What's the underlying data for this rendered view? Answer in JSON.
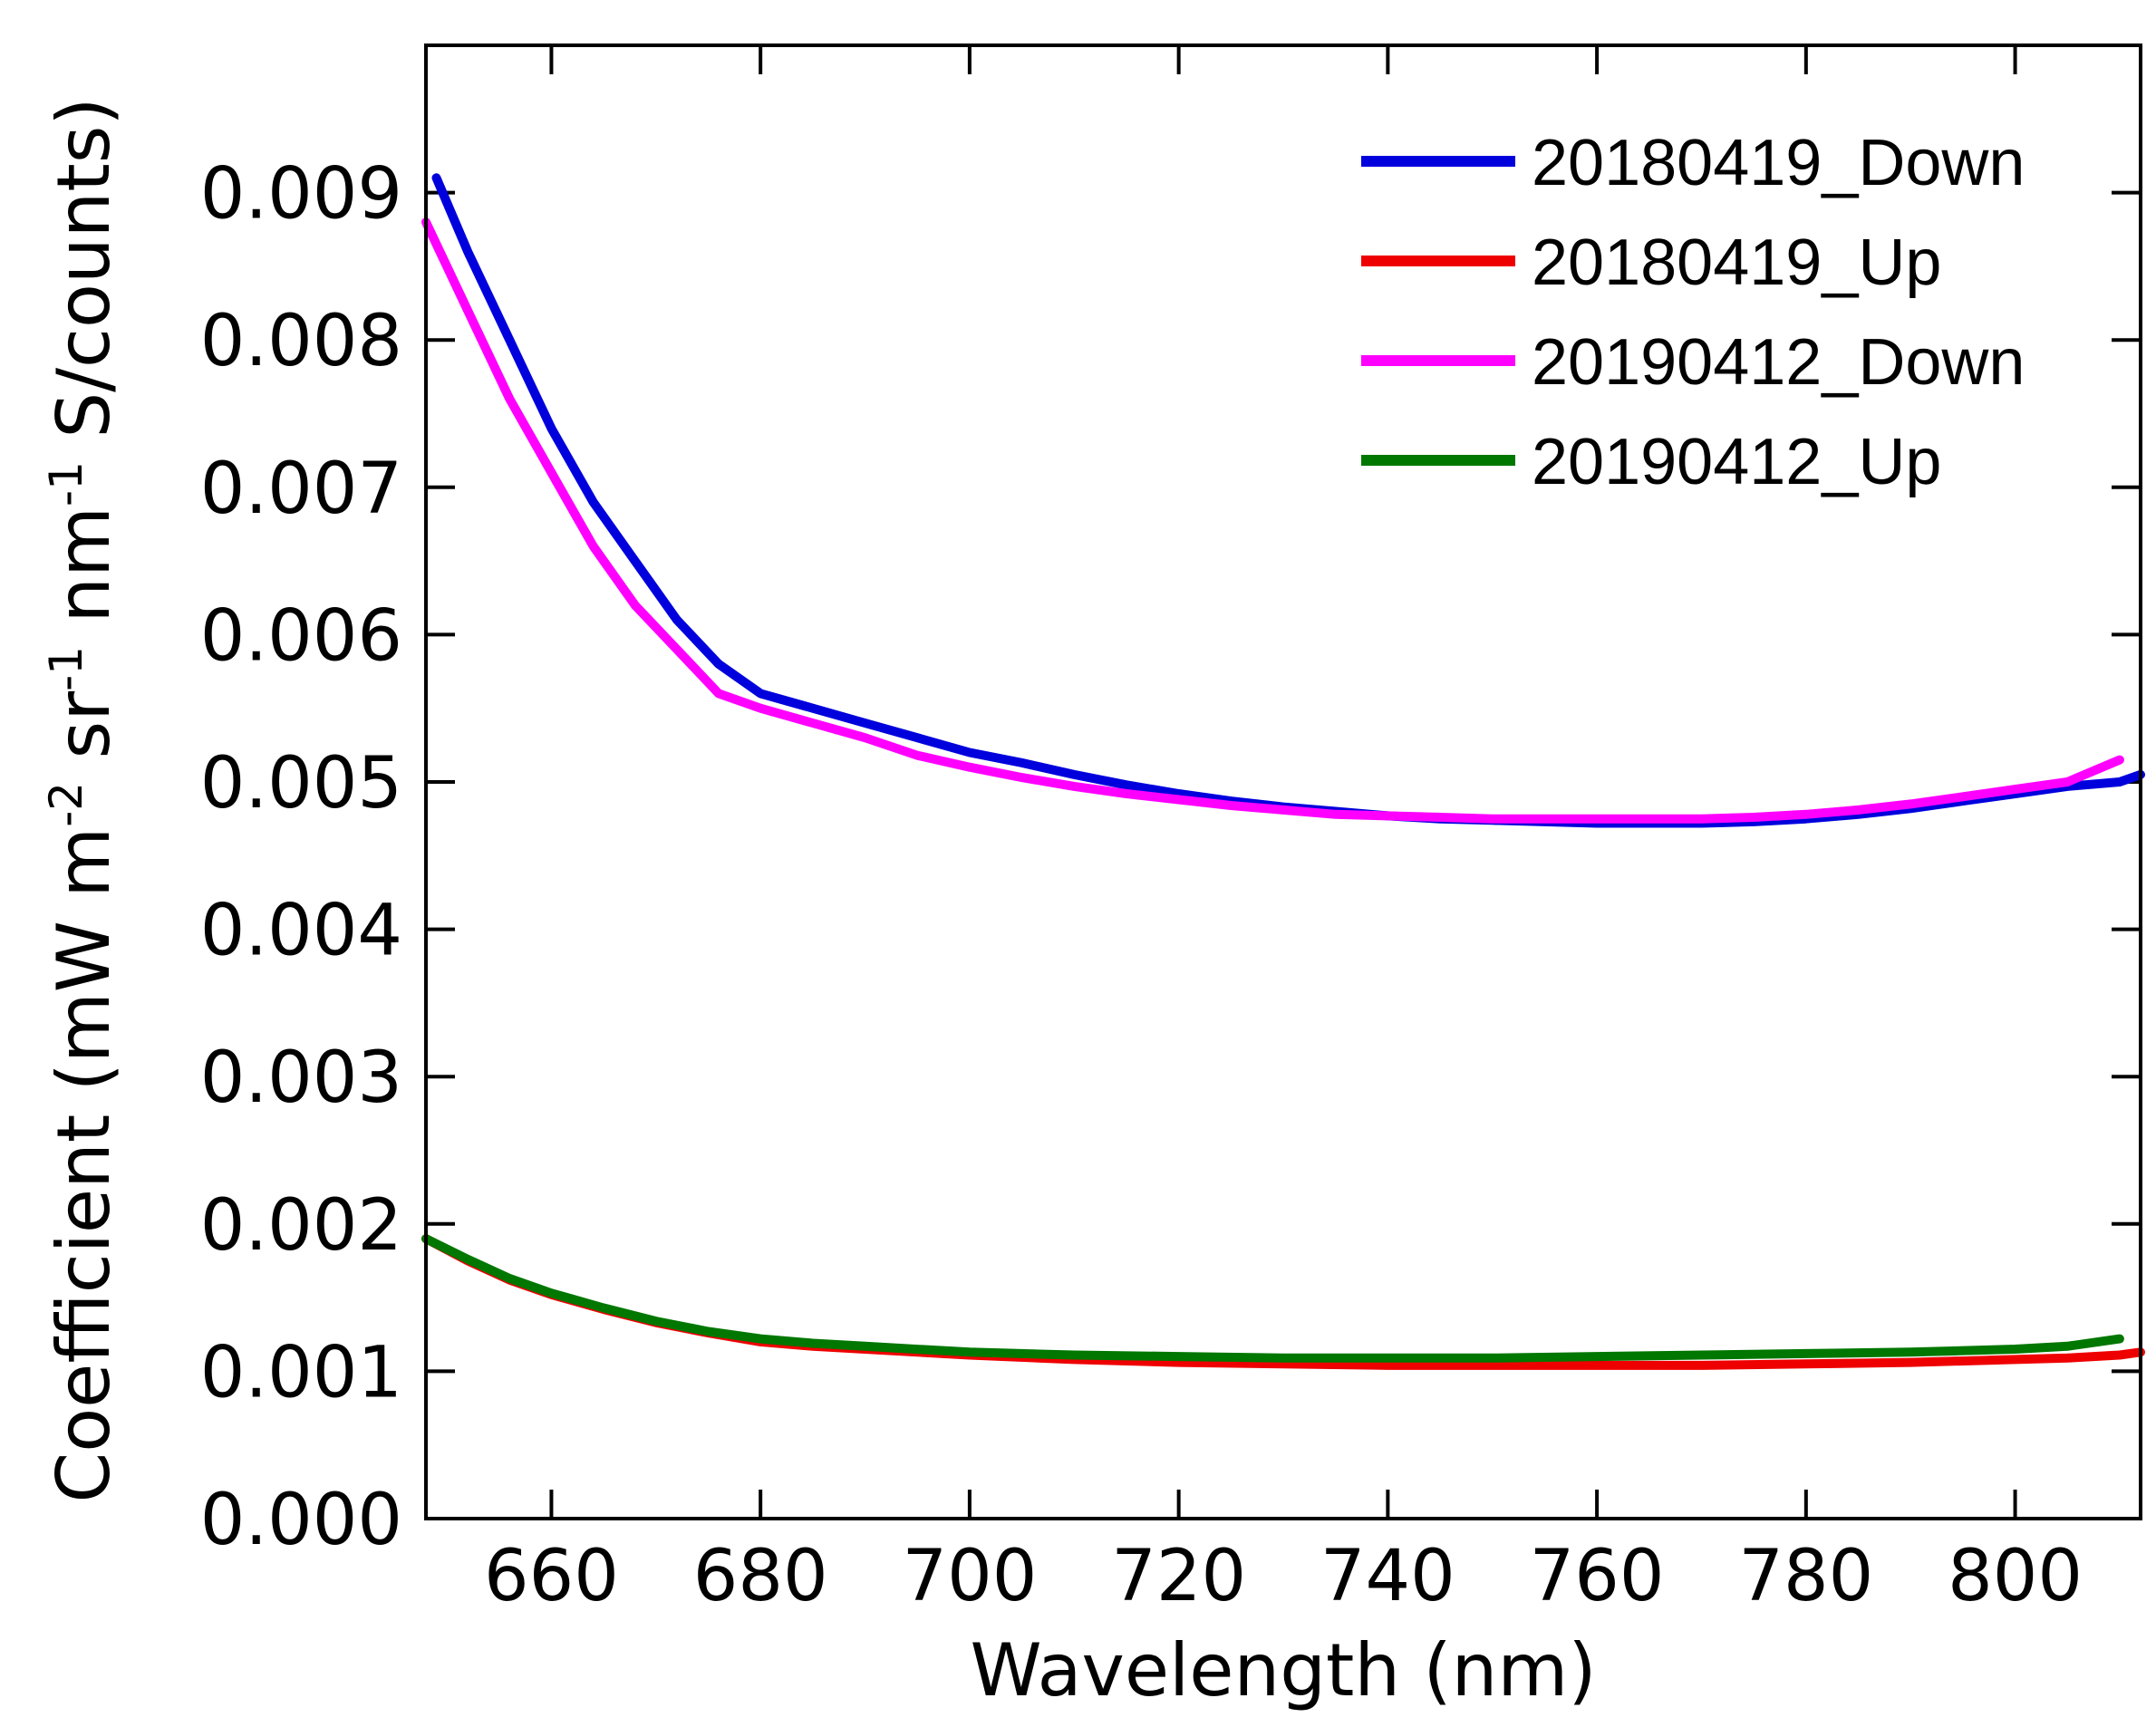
{
  "chart_data": {
    "type": "line",
    "title": "",
    "xlabel": "Wavelength (nm)",
    "ylabel": "Coefficient (mW m-2 sr-1 nm-1 S/counts)",
    "ylabel_parts": {
      "pre": "Coefficient (mW m",
      "sup1": "-2",
      "mid1": " sr",
      "sup2": "-1",
      "mid2": " nm",
      "sup3": "-1",
      "post": " S/counts)"
    },
    "xlim": [
      648,
      812
    ],
    "ylim": [
      0,
      0.01
    ],
    "x_ticks": [
      "660",
      "680",
      "700",
      "720",
      "740",
      "760",
      "780",
      "800"
    ],
    "y_ticks": [
      "0.000",
      "0.001",
      "0.002",
      "0.003",
      "0.004",
      "0.005",
      "0.006",
      "0.007",
      "0.008",
      "0.009"
    ],
    "grid": false,
    "legend_position": "top-right",
    "series": [
      {
        "name": "20180419_Down",
        "color": "#0000dd",
        "x": [
          649,
          652,
          656,
          660,
          664,
          668,
          672,
          676,
          680,
          685,
          690,
          695,
          700,
          705,
          710,
          715,
          720,
          725,
          730,
          735,
          740,
          745,
          750,
          755,
          760,
          765,
          770,
          775,
          780,
          785,
          790,
          795,
          800,
          805,
          810,
          812
        ],
        "y": [
          0.0091,
          0.0086,
          0.008,
          0.0074,
          0.0069,
          0.0065,
          0.0061,
          0.0058,
          0.0056,
          0.0055,
          0.0054,
          0.0053,
          0.0052,
          0.00513,
          0.00505,
          0.00498,
          0.00492,
          0.00487,
          0.00483,
          0.0048,
          0.00477,
          0.00475,
          0.00474,
          0.00473,
          0.00472,
          0.00472,
          0.00472,
          0.00473,
          0.00475,
          0.00478,
          0.00482,
          0.00487,
          0.00492,
          0.00497,
          0.005,
          0.00505
        ]
      },
      {
        "name": "20180419_Up",
        "color": "#ee0000",
        "x": [
          648,
          652,
          656,
          660,
          665,
          670,
          675,
          680,
          685,
          690,
          700,
          710,
          720,
          730,
          740,
          750,
          760,
          770,
          780,
          790,
          800,
          805,
          810,
          812
        ],
        "y": [
          0.0019,
          0.00175,
          0.00162,
          0.00152,
          0.00142,
          0.00133,
          0.00126,
          0.0012,
          0.00117,
          0.00115,
          0.00111,
          0.00108,
          0.00106,
          0.00105,
          0.00104,
          0.00104,
          0.00104,
          0.00104,
          0.00105,
          0.00106,
          0.00108,
          0.00109,
          0.00111,
          0.00113
        ]
      },
      {
        "name": "20190412_Down",
        "color": "#ff00ff",
        "x": [
          648,
          652,
          656,
          660,
          664,
          668,
          672,
          676,
          680,
          685,
          690,
          695,
          700,
          705,
          710,
          715,
          720,
          725,
          730,
          735,
          740,
          745,
          750,
          755,
          760,
          765,
          770,
          775,
          780,
          785,
          790,
          795,
          800,
          805,
          810
        ],
        "y": [
          0.0088,
          0.0082,
          0.0076,
          0.0071,
          0.0066,
          0.0062,
          0.0059,
          0.0056,
          0.0055,
          0.0054,
          0.0053,
          0.00518,
          0.0051,
          0.00503,
          0.00497,
          0.00492,
          0.00488,
          0.00484,
          0.00481,
          0.00478,
          0.00477,
          0.00476,
          0.00475,
          0.00475,
          0.00475,
          0.00475,
          0.00475,
          0.00476,
          0.00478,
          0.00481,
          0.00485,
          0.0049,
          0.00495,
          0.005,
          0.00515
        ]
      },
      {
        "name": "20190412_Up",
        "color": "#007700",
        "x": [
          648,
          652,
          656,
          660,
          665,
          670,
          675,
          680,
          685,
          690,
          700,
          710,
          720,
          730,
          740,
          750,
          760,
          770,
          780,
          790,
          800,
          805,
          810
        ],
        "y": [
          0.0019,
          0.00176,
          0.00163,
          0.00153,
          0.00143,
          0.00134,
          0.00127,
          0.00122,
          0.00119,
          0.00117,
          0.00113,
          0.00111,
          0.0011,
          0.00109,
          0.00109,
          0.00109,
          0.0011,
          0.00111,
          0.00112,
          0.00113,
          0.00115,
          0.00117,
          0.00122
        ]
      }
    ]
  }
}
